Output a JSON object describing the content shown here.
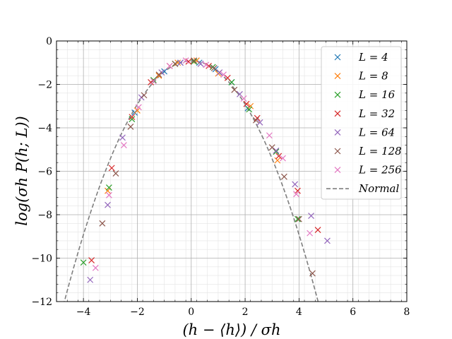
{
  "chart_data": {
    "type": "scatter",
    "xlabel": "(h − ⟨h⟩) / σh",
    "ylabel": "log(σh P(h; L))",
    "xlim": [
      -5,
      8
    ],
    "ylim": [
      -12,
      0
    ],
    "xticks": [
      -4,
      -2,
      0,
      2,
      4,
      6,
      8
    ],
    "yticks": [
      0,
      -2,
      -4,
      -6,
      -8,
      -10,
      -12
    ],
    "xtick_labels": [
      "−4",
      "−2",
      "0",
      "2",
      "4",
      "6",
      "8"
    ],
    "ytick_labels": [
      "0",
      "−2",
      "−4",
      "−6",
      "−8",
      "−10",
      "−12"
    ],
    "grid": "major and minor",
    "legend_position": "top-right",
    "series": [
      {
        "name": "L = 4",
        "color": "#1f77b4",
        "marker": "x",
        "points": [
          [
            -2.1,
            -3.3
          ],
          [
            -1.0,
            -1.4
          ],
          [
            -0.4,
            -1.0
          ],
          [
            0.3,
            -1.0
          ],
          [
            0.9,
            -1.3
          ],
          [
            1.5,
            -1.9
          ],
          [
            2.1,
            -3.1
          ]
        ]
      },
      {
        "name": "L = 8",
        "color": "#ff7f0e",
        "marker": "x",
        "points": [
          [
            -3.1,
            -6.9
          ],
          [
            -2.0,
            -3.2
          ],
          [
            -1.2,
            -1.6
          ],
          [
            -0.5,
            -1.0
          ],
          [
            0.2,
            -0.9
          ],
          [
            1.0,
            -1.5
          ],
          [
            2.2,
            -3.0
          ],
          [
            3.2,
            -5.5
          ]
        ]
      },
      {
        "name": "L = 16",
        "color": "#2ca02c",
        "marker": "x",
        "points": [
          [
            -4.0,
            -10.2
          ],
          [
            -3.05,
            -6.75
          ],
          [
            -2.2,
            -3.6
          ],
          [
            -1.4,
            -1.8
          ],
          [
            -0.6,
            -1.05
          ],
          [
            0.1,
            -0.95
          ],
          [
            0.8,
            -1.2
          ],
          [
            1.5,
            -1.9
          ],
          [
            2.15,
            -3.15
          ],
          [
            3.15,
            -5.1
          ],
          [
            3.95,
            -8.2
          ]
        ]
      },
      {
        "name": "L = 32",
        "color": "#d62728",
        "marker": "x",
        "points": [
          [
            -3.7,
            -10.1
          ],
          [
            -2.95,
            -5.85
          ],
          [
            -2.2,
            -3.5
          ],
          [
            -1.5,
            -1.9
          ],
          [
            -0.8,
            -1.15
          ],
          [
            -0.1,
            -0.95
          ],
          [
            0.65,
            -1.15
          ],
          [
            1.35,
            -1.7
          ],
          [
            2.05,
            -2.9
          ],
          [
            2.45,
            -3.55
          ],
          [
            3.25,
            -5.3
          ],
          [
            3.95,
            -6.9
          ],
          [
            4.7,
            -8.7
          ]
        ]
      },
      {
        "name": "L = 64",
        "color": "#9467bd",
        "marker": "x",
        "points": [
          [
            -3.75,
            -11.0
          ],
          [
            -3.1,
            -7.55
          ],
          [
            -2.55,
            -4.45
          ],
          [
            -1.85,
            -2.6
          ],
          [
            -1.1,
            -1.45
          ],
          [
            -0.4,
            -1.0
          ],
          [
            0.35,
            -1.05
          ],
          [
            1.05,
            -1.45
          ],
          [
            1.8,
            -2.45
          ],
          [
            2.55,
            -3.75
          ],
          [
            3.15,
            -5.05
          ],
          [
            3.85,
            -6.6
          ],
          [
            4.45,
            -8.05
          ],
          [
            5.05,
            -9.2
          ]
        ]
      },
      {
        "name": "L = 128",
        "color": "#8c564b",
        "marker": "x",
        "points": [
          [
            -3.3,
            -8.4
          ],
          [
            -2.8,
            -6.1
          ],
          [
            -2.25,
            -3.95
          ],
          [
            -1.75,
            -2.5
          ],
          [
            -1.2,
            -1.55
          ],
          [
            -0.6,
            -1.05
          ],
          [
            0.1,
            -0.9
          ],
          [
            0.85,
            -1.25
          ],
          [
            1.6,
            -2.25
          ],
          [
            2.4,
            -3.65
          ],
          [
            3.0,
            -4.9
          ],
          [
            3.45,
            -6.25
          ],
          [
            4.0,
            -8.2
          ],
          [
            4.5,
            -10.7
          ]
        ]
      },
      {
        "name": "L = 256",
        "color": "#e377c2",
        "marker": "x",
        "points": [
          [
            -3.55,
            -10.45
          ],
          [
            -3.05,
            -7.1
          ],
          [
            -2.5,
            -4.8
          ],
          [
            -1.95,
            -3.05
          ],
          [
            -1.4,
            -1.85
          ],
          [
            -0.8,
            -1.15
          ],
          [
            -0.2,
            -0.9
          ],
          [
            0.55,
            -1.1
          ],
          [
            1.2,
            -1.55
          ],
          [
            1.95,
            -2.65
          ],
          [
            2.9,
            -4.35
          ],
          [
            3.4,
            -5.4
          ],
          [
            3.9,
            -7.05
          ],
          [
            4.4,
            -8.85
          ]
        ]
      }
    ],
    "reference_curve": {
      "name": "Normal",
      "color": "#7f7f7f",
      "style": "dashed",
      "function": "-0.9189 - x^2/2"
    }
  }
}
